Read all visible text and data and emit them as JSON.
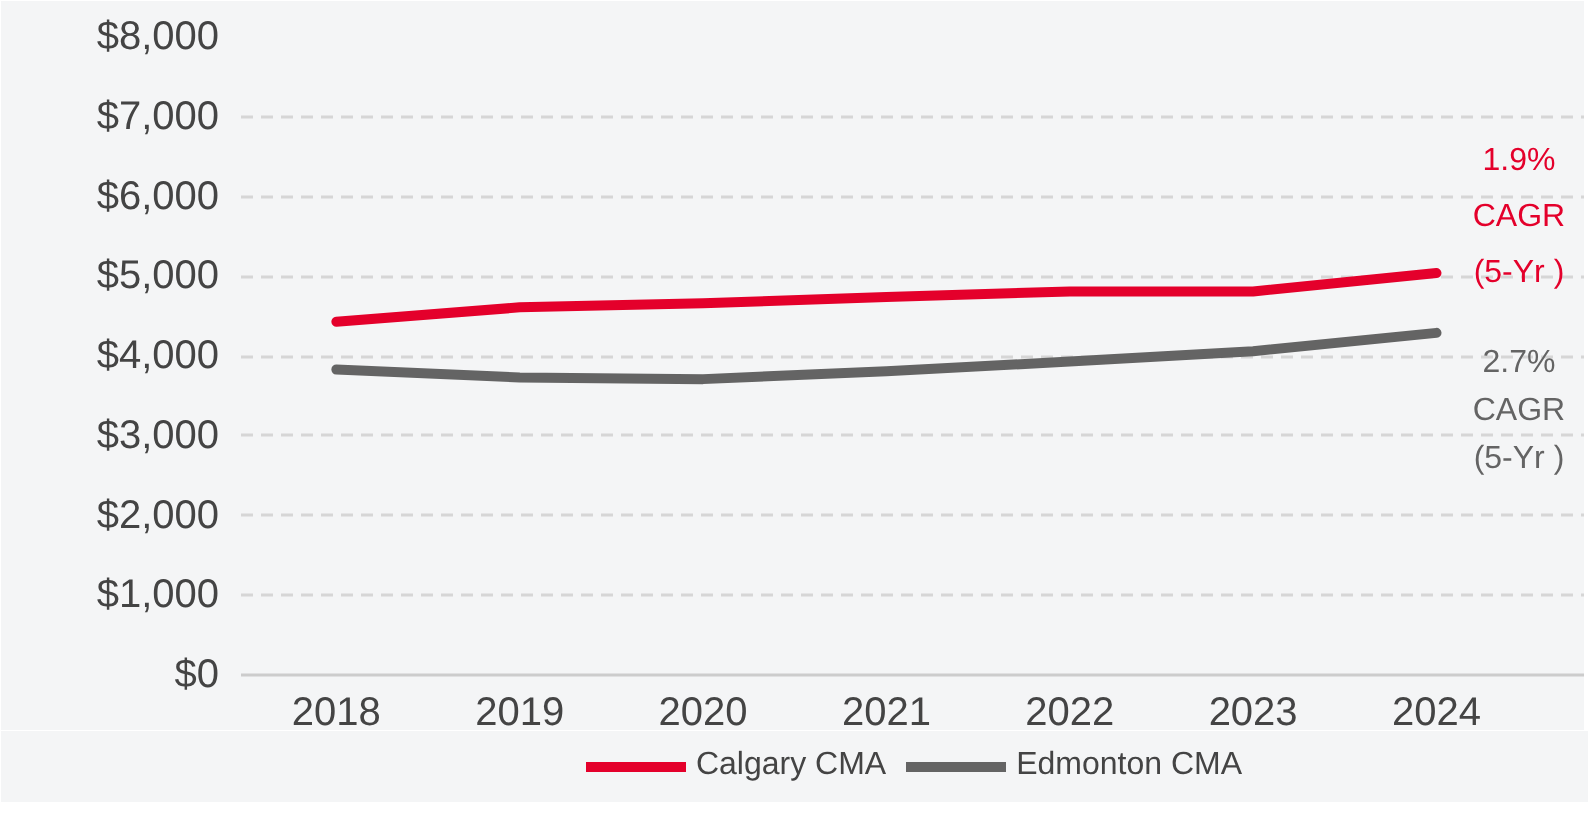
{
  "chart_data": {
    "type": "line",
    "categories": [
      "2018",
      "2019",
      "2020",
      "2021",
      "2022",
      "2023",
      "2024"
    ],
    "series": [
      {
        "name": "Calgary CMA",
        "color": "#e4002b",
        "values": [
          4430,
          4610,
          4660,
          4740,
          4810,
          4810,
          5040
        ]
      },
      {
        "name": "Edmonton CMA",
        "color": "#646464",
        "values": [
          3830,
          3730,
          3710,
          3810,
          3930,
          4060,
          4290
        ]
      }
    ],
    "ylim": [
      0,
      8000
    ],
    "yticks": [
      {
        "value": 0,
        "label": "$0"
      },
      {
        "value": 1000,
        "label": "$1,000"
      },
      {
        "value": 2000,
        "label": "$2,000"
      },
      {
        "value": 3000,
        "label": "$3,000"
      },
      {
        "value": 4000,
        "label": "$4,000"
      },
      {
        "value": 5000,
        "label": "$5,000"
      },
      {
        "value": 6000,
        "label": "$6,000"
      },
      {
        "value": 7000,
        "label": "$7,000"
      },
      {
        "value": 8000,
        "label": "$8,000"
      }
    ],
    "annotations": [
      {
        "text": "1.9%\nCAGR\n(5-Yr )",
        "x": "2024",
        "y": 5040
      },
      {
        "text": "2.7%\nCAGR\n(5-Yr )",
        "x": "2024",
        "y": 4290
      }
    ],
    "grid": "y",
    "legend": "bottom",
    "marker": "none",
    "line_style": "solid"
  }
}
